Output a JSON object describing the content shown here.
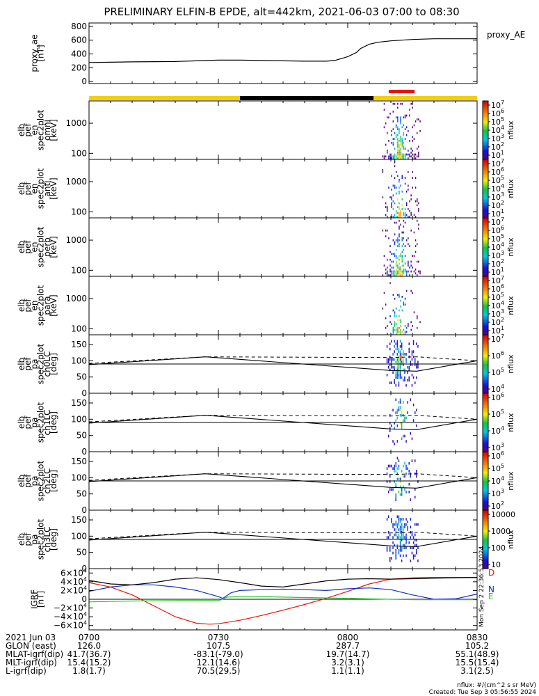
{
  "title": "PRELIMINARY ELFIN-B EPDE, alt=442km, 2021-06-03 07:00 to 08:30",
  "colors": {
    "yellow": "#f5d000",
    "black": "#000000",
    "red": "#e8140a",
    "blue": "#1030c0",
    "green": "#22cc22"
  },
  "panels": [
    {
      "id": "proxy_ae",
      "ylabel": [
        "proxy_ae",
        "[nT]"
      ],
      "ticks": [
        "800",
        "600",
        "400",
        "200",
        "0"
      ],
      "right_label": "proxy_AE",
      "cbar_title": "",
      "cbar_ticks": []
    },
    {
      "id": "omni",
      "ylabel": [
        "elb",
        "pef",
        "en",
        "spec2plot",
        "omni",
        "[keV]"
      ],
      "ticks": [
        "1000",
        "100"
      ],
      "cbar_title": "nflux",
      "cbar_ticks": [
        "10^7",
        "10^6",
        "10^5",
        "10^4",
        "10^3",
        "10^2",
        "10^1"
      ]
    },
    {
      "id": "anti",
      "ylabel": [
        "elb",
        "pef",
        "en",
        "spec2plot",
        "anti",
        "[keV]"
      ],
      "ticks": [
        "1000",
        "100"
      ],
      "cbar_title": "nflux",
      "cbar_ticks": [
        "10^7",
        "10^6",
        "10^5",
        "10^4",
        "10^3",
        "10^2",
        "10^1"
      ]
    },
    {
      "id": "perp",
      "ylabel": [
        "elb",
        "pef",
        "en",
        "spec2plot",
        "perp",
        "[keV]"
      ],
      "ticks": [
        "1000",
        "100"
      ],
      "cbar_title": "nflux",
      "cbar_ticks": [
        "10^7",
        "10^6",
        "10^5",
        "10^4",
        "10^3",
        "10^2",
        "10^1"
      ]
    },
    {
      "id": "para",
      "ylabel": [
        "elb",
        "pef",
        "en",
        "spec2plot",
        "para",
        "[keV]"
      ],
      "ticks": [
        "1000",
        "100"
      ],
      "cbar_title": "nflux",
      "cbar_ticks": [
        "10^7",
        "10^6",
        "10^5",
        "10^4",
        "10^3",
        "10^2",
        "10^1"
      ]
    },
    {
      "id": "ch0LC",
      "ylabel": [
        "elb",
        "pef",
        "pa",
        "spec2plot",
        "ch0LC",
        "[deg]"
      ],
      "ticks": [
        "150",
        "100",
        "50",
        "0"
      ],
      "cbar_title": "nflux",
      "cbar_ticks": [
        "10^7",
        "10^6",
        "10^5",
        "10^4"
      ]
    },
    {
      "id": "ch1LC",
      "ylabel": [
        "elb",
        "pef",
        "pa",
        "spec2plot",
        "ch1LC",
        "[deg]"
      ],
      "ticks": [
        "150",
        "100",
        "50",
        "0"
      ],
      "cbar_title": "nflux",
      "cbar_ticks": [
        "10^6",
        "10^5",
        "10^4",
        "10^3"
      ]
    },
    {
      "id": "ch2LC",
      "ylabel": [
        "elb",
        "pef",
        "pa",
        "spec2plot",
        "ch2LC",
        "[deg]"
      ],
      "ticks": [
        "150",
        "100",
        "50",
        "0"
      ],
      "cbar_title": "nflux",
      "cbar_ticks": [
        "10^6",
        "10^5",
        "10^4",
        "10^3",
        "10^2"
      ]
    },
    {
      "id": "ch3LC",
      "ylabel": [
        "elb",
        "pef",
        "pa",
        "spec2plot",
        "ch3LC",
        "[deg]"
      ],
      "ticks": [
        "150",
        "100",
        "50",
        "0"
      ],
      "cbar_title": "nflux",
      "cbar_ticks": [
        "10000",
        "1000",
        "100",
        "10"
      ]
    },
    {
      "id": "igrf",
      "ylabel": [
        "IGRF",
        "[nT]"
      ],
      "ticks": [
        "6×10^4",
        "4×10^4",
        "2×10^4",
        "0",
        "−2×10^4",
        "−4×10^4",
        "−6×10^4"
      ],
      "cbar_title": "",
      "cbar_ticks": [],
      "side_labels": [
        "D",
        "N",
        "E"
      ],
      "stamp": "Mon Sep 2 22:36:53 2024"
    }
  ],
  "time_axis": {
    "rows": [
      [
        "2021 Jun 03",
        "0700",
        "0730",
        "0800",
        "0830"
      ],
      [
        "GLON (east)",
        "126.0",
        "107.5",
        "287.7",
        "105.2"
      ],
      [
        "MLAT-igrf(dip)",
        "41.7(36.7)",
        "-83.1(-79.0)",
        "19.7(14.7)",
        "55.1(48.9)"
      ],
      [
        "MLT-igrf(dip)",
        "15.4(15.2)",
        "12.1(14.6)",
        "3.2(3.1)",
        "15.5(15.4)"
      ],
      [
        "L-igrf(dip)",
        "1.8(1.7)",
        "70.5(29.5)",
        "1.1(1.1)",
        "3.1(2.5)"
      ]
    ]
  },
  "footer": {
    "units": "nflux: #/(cm^2 s sr MeV)",
    "created": "Created: Tue Sep  3 05:56:55 2024"
  },
  "chart_data": [
    {
      "type": "line",
      "name": "proxy_ae",
      "x_unit": "minutes since 07:00",
      "xlim": [
        0,
        90
      ],
      "ylim": [
        -30,
        850
      ],
      "series": [
        {
          "name": "proxy_AE",
          "color": "#000000",
          "x": [
            0,
            5,
            10,
            20,
            25,
            30,
            35,
            40,
            45,
            50,
            55,
            57,
            60,
            62,
            63,
            65,
            67,
            70,
            75,
            80,
            85,
            90
          ],
          "values": [
            275,
            280,
            285,
            290,
            300,
            310,
            310,
            305,
            300,
            295,
            295,
            305,
            360,
            420,
            480,
            540,
            570,
            590,
            610,
            620,
            620,
            620
          ]
        }
      ]
    },
    {
      "type": "bar",
      "name": "orbit_bar",
      "categories": [
        "07:00-07:35",
        "07:35-08:06",
        "08:06-08:30"
      ],
      "values": [
        35,
        31,
        24
      ],
      "colors": [
        "#f5d000",
        "#000000",
        "#f5d000"
      ],
      "marker": {
        "start_min": 69.5,
        "end_min": 75.5,
        "color": "#e8140a"
      }
    },
    {
      "type": "heatmap",
      "name": "energy_spectrograms",
      "panels": [
        "omni",
        "anti",
        "perp",
        "para"
      ],
      "x_range_min": [
        68,
        77
      ],
      "yscale": "log",
      "ylim_keV": [
        63,
        5500
      ],
      "colorscale": "log nflux 10^1 to 10^7"
    },
    {
      "type": "line",
      "name": "pitch_angle_loss_cone",
      "xlim": [
        0,
        90
      ],
      "ylim": [
        0,
        180
      ],
      "series": [
        {
          "name": "solid",
          "x": [
            0,
            27,
            70,
            76,
            90
          ],
          "values": [
            88,
            112,
            70,
            68,
            100
          ]
        },
        {
          "name": "dashed",
          "x": [
            0,
            27,
            70,
            76,
            90
          ],
          "values": [
            92,
            112,
            110,
            112,
            100
          ]
        },
        {
          "name": "level_90",
          "x": [
            0,
            90
          ],
          "values": [
            90,
            90
          ]
        }
      ]
    },
    {
      "type": "line",
      "name": "igrf",
      "xlim": [
        0,
        90
      ],
      "ylim": [
        -70000,
        70000
      ],
      "series": [
        {
          "name": "D",
          "color": "#e8140a",
          "x": [
            0,
            5,
            10,
            15,
            20,
            25,
            28,
            30,
            35,
            40,
            45,
            50,
            55,
            60,
            65,
            70,
            75,
            80,
            85,
            90
          ],
          "values": [
            38000,
            28000,
            10000,
            -15000,
            -40000,
            -55000,
            -57000,
            -56000,
            -48000,
            -37000,
            -25000,
            -12000,
            2000,
            18000,
            35000,
            46000,
            49000,
            50000,
            50000,
            50000
          ]
        },
        {
          "name": "N",
          "color": "#1030c0",
          "x": [
            0,
            5,
            10,
            15,
            20,
            25,
            30,
            31,
            33,
            35,
            40,
            45,
            50,
            55,
            60,
            65,
            70,
            75,
            80,
            85,
            90
          ],
          "values": [
            18000,
            28000,
            33000,
            33000,
            28000,
            20000,
            6000,
            2000,
            15000,
            20000,
            22000,
            23000,
            22000,
            20000,
            24000,
            26000,
            22000,
            10000,
            0,
            1000,
            12000
          ]
        },
        {
          "name": "E",
          "color": "#22cc22",
          "x": [
            0,
            10,
            20,
            30,
            31,
            32,
            35,
            40,
            45,
            50,
            55,
            60,
            65,
            70,
            75,
            80,
            85,
            90
          ],
          "values": [
            -6000,
            -4000,
            -3000,
            -3000,
            0,
            5000,
            6000,
            6000,
            5000,
            4000,
            3000,
            2000,
            1000,
            0,
            -1000,
            -1000,
            -1000,
            -1000
          ]
        },
        {
          "name": "total",
          "color": "#000000",
          "x": [
            0,
            5,
            10,
            15,
            20,
            25,
            30,
            35,
            40,
            45,
            50,
            55,
            60,
            65,
            70,
            75,
            80,
            85,
            90
          ],
          "values": [
            43000,
            35000,
            33000,
            38000,
            46000,
            49000,
            45000,
            38000,
            30000,
            28000,
            35000,
            42000,
            46000,
            47000,
            46000,
            47000,
            48000,
            49000,
            50000
          ]
        }
      ]
    }
  ]
}
